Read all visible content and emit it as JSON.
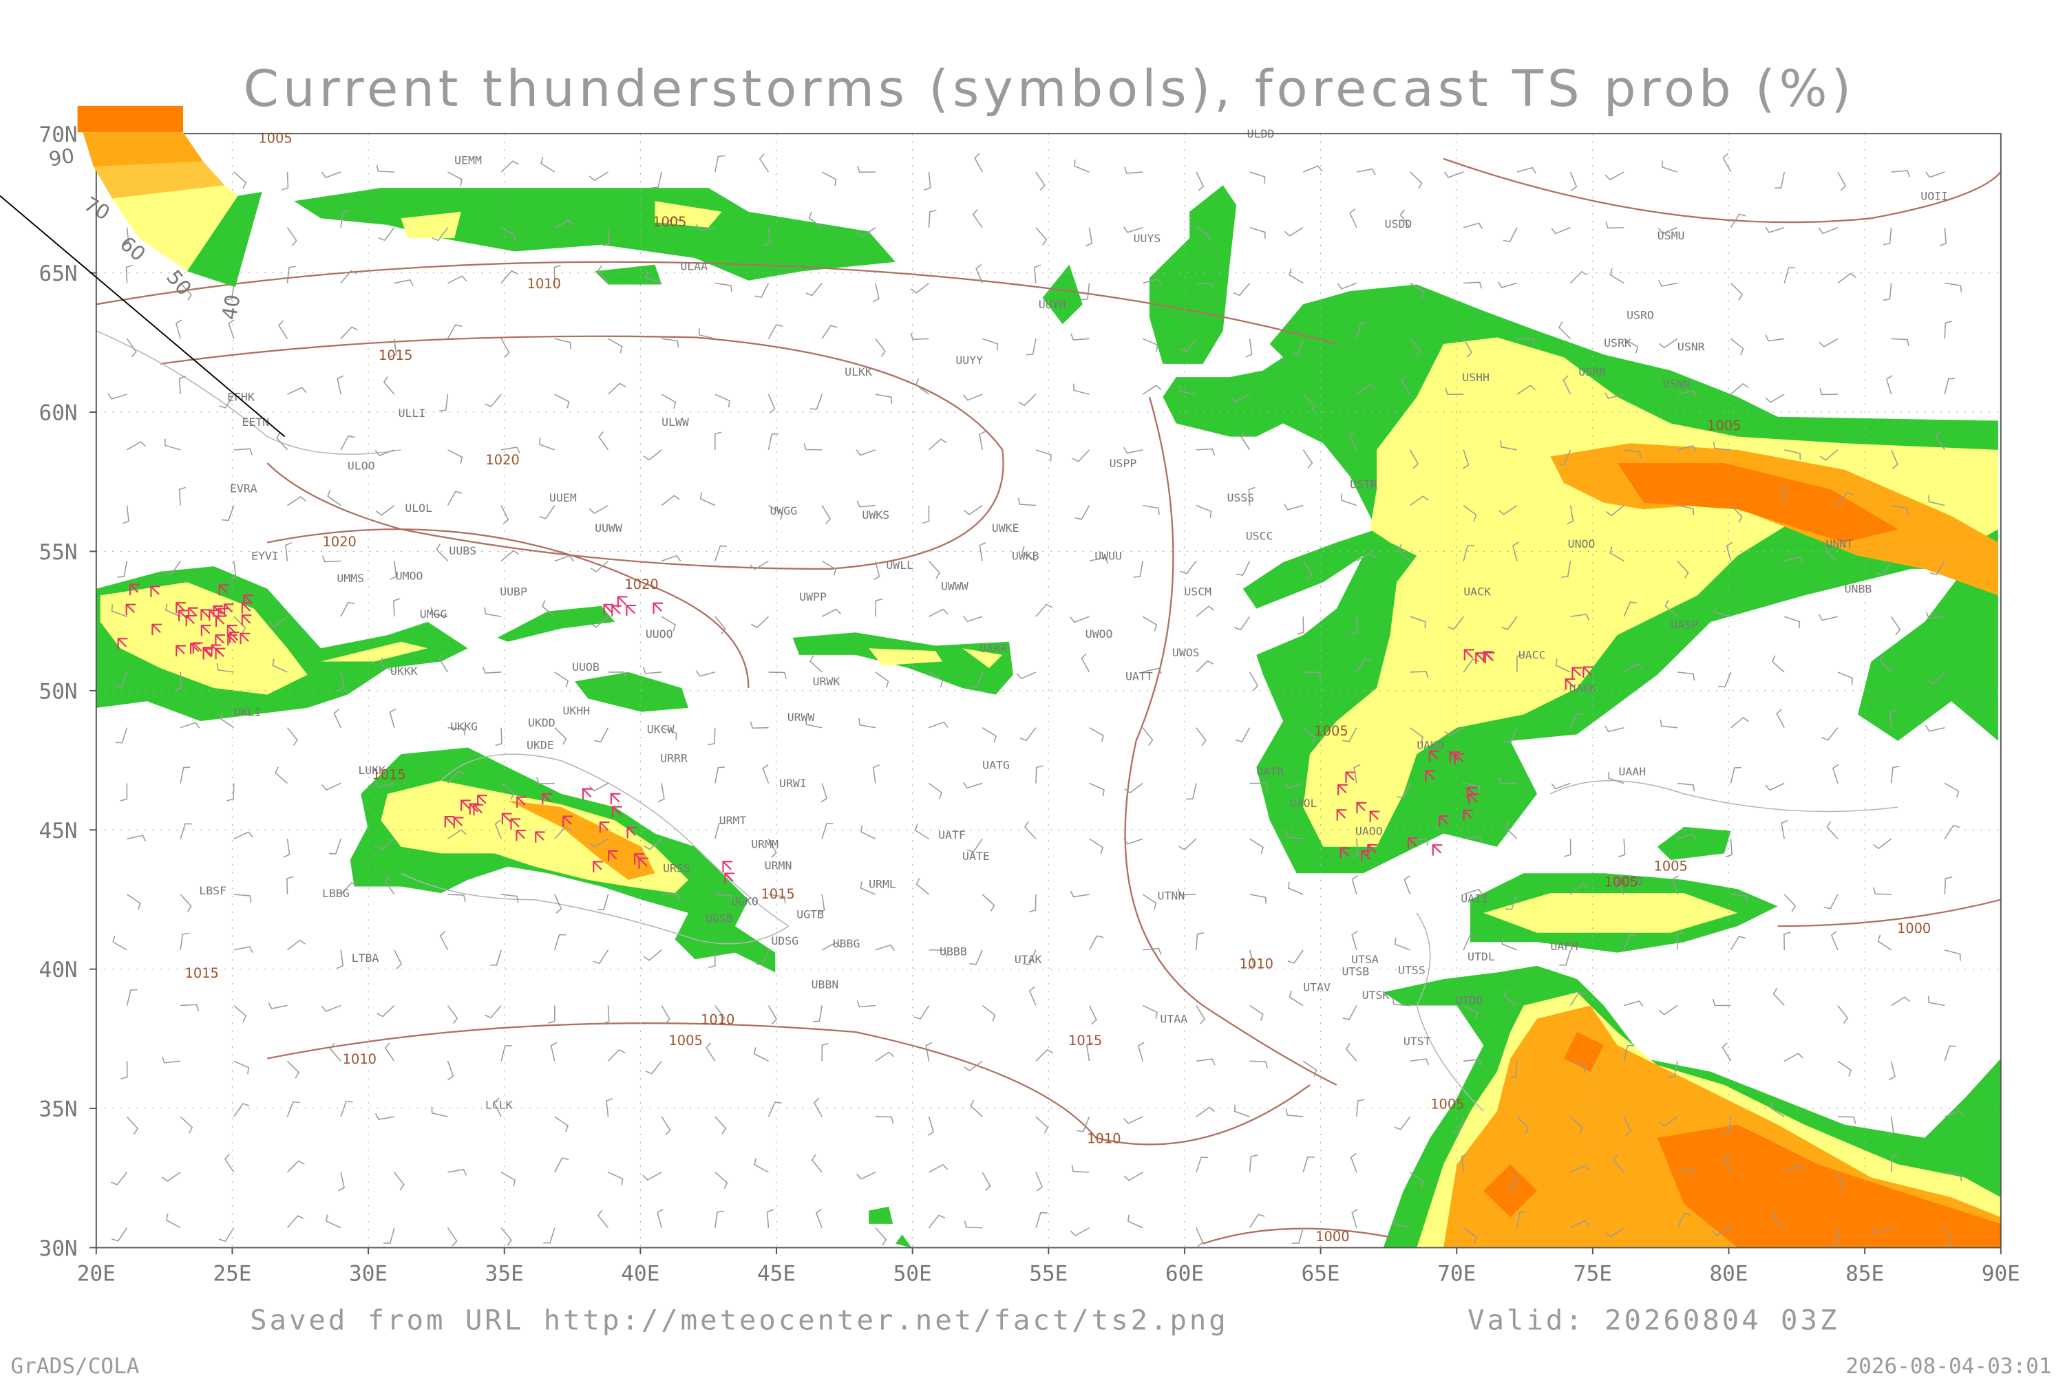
{
  "title": "Current thunderstorms (symbols), forecast TS prob (%)",
  "map": {
    "lon_range": [
      20,
      90
    ],
    "lat_range": [
      30,
      70
    ],
    "lon_ticks": [
      {
        "value": 20,
        "label": "20E"
      },
      {
        "value": 25,
        "label": "25E"
      },
      {
        "value": 30,
        "label": "30E"
      },
      {
        "value": 35,
        "label": "35E"
      },
      {
        "value": 40,
        "label": "40E"
      },
      {
        "value": 45,
        "label": "45E"
      },
      {
        "value": 50,
        "label": "50E"
      },
      {
        "value": 55,
        "label": "55E"
      },
      {
        "value": 60,
        "label": "60E"
      },
      {
        "value": 65,
        "label": "65E"
      },
      {
        "value": 70,
        "label": "70E"
      },
      {
        "value": 75,
        "label": "75E"
      },
      {
        "value": 80,
        "label": "80E"
      },
      {
        "value": 85,
        "label": "85E"
      },
      {
        "value": 90,
        "label": "90E"
      }
    ],
    "lat_ticks": [
      {
        "value": 30,
        "label": "30N"
      },
      {
        "value": 35,
        "label": "35N"
      },
      {
        "value": 40,
        "label": "40N"
      },
      {
        "value": 45,
        "label": "45N"
      },
      {
        "value": 50,
        "label": "50N"
      },
      {
        "value": 55,
        "label": "55N"
      },
      {
        "value": 60,
        "label": "60N"
      },
      {
        "value": 65,
        "label": "65N"
      },
      {
        "value": 70,
        "label": "70N"
      }
    ]
  },
  "legend": {
    "labels": [
      90,
      70,
      60,
      50,
      40
    ],
    "colors": [
      "#ff7f00",
      "#ffaa14",
      "#ffc83c",
      "#ffff80",
      "#32c832"
    ]
  },
  "stations": [
    "ULDD",
    "UEMM",
    "ULAA",
    "UUYS",
    "USDD",
    "UOII",
    "USMU",
    "UUYH",
    "USRO",
    "USRK",
    "USNR",
    "ULKK",
    "UUYY",
    "USHH",
    "USRR",
    "USNN",
    "EFHK",
    "EETN",
    "ULLI",
    "ULWW",
    "USPP",
    "ULOO",
    "EVRA",
    "ULOL",
    "UUEM",
    "USTR",
    "USSS",
    "UWGG",
    "UWKS",
    "UWKE",
    "USCC",
    "UUWW",
    "UUBS",
    "UNOO",
    "UNNT",
    "UMMS",
    "UMOO",
    "EYVI",
    "UWKB",
    "UWUU",
    "UWLL",
    "UWWW",
    "UUBP",
    "USCM",
    "UACK",
    "UNBB",
    "UMGG",
    "UWPP",
    "UUOO",
    "UASP",
    "UWOO",
    "UWOS",
    "UACC",
    "UKKK",
    "UUOB",
    "UATT",
    "UARR",
    "UKHH",
    "URWK",
    "UKLI",
    "UAKK",
    "UKKG",
    "UKDD",
    "UKCW",
    "URWW",
    "UKDE",
    "URRR",
    "UAKD",
    "UATG",
    "LUKK",
    "URWI",
    "UATR",
    "UAAH",
    "UAOL",
    "URMT",
    "UATF",
    "UAOO",
    "URMM",
    "UATE",
    "URMN",
    "URSS",
    "URML",
    "UAII",
    "UCFO",
    "UGKO",
    "UTNN",
    "LBSF",
    "LBBG",
    "UGTB",
    "UGSB",
    "UDSG",
    "UBBG",
    "UBBB",
    "LTBA",
    "UTAK",
    "UTSA",
    "UTDL",
    "UTSB",
    "UTSS",
    "UAFM",
    "UTAV",
    "UTSK",
    "UBBN",
    "UTDD",
    "UTAA",
    "UTST",
    "LCLK"
  ],
  "isobar_labels": [
    "1005",
    "1005",
    "1010",
    "1015",
    "1020",
    "1020",
    "1020",
    "1015",
    "1015",
    "1015",
    "1010",
    "1005",
    "1010",
    "1015",
    "1010",
    "1010",
    "1005",
    "1005",
    "1005",
    "1005",
    "1005",
    "1000",
    "1000"
  ],
  "footer": {
    "source": "Saved from URL http://meteocenter.net/fact/ts2.png",
    "valid": "Valid: 20260804 03Z",
    "software": "GrADS/COLA",
    "timestamp": "2026-08-04-03:01"
  }
}
